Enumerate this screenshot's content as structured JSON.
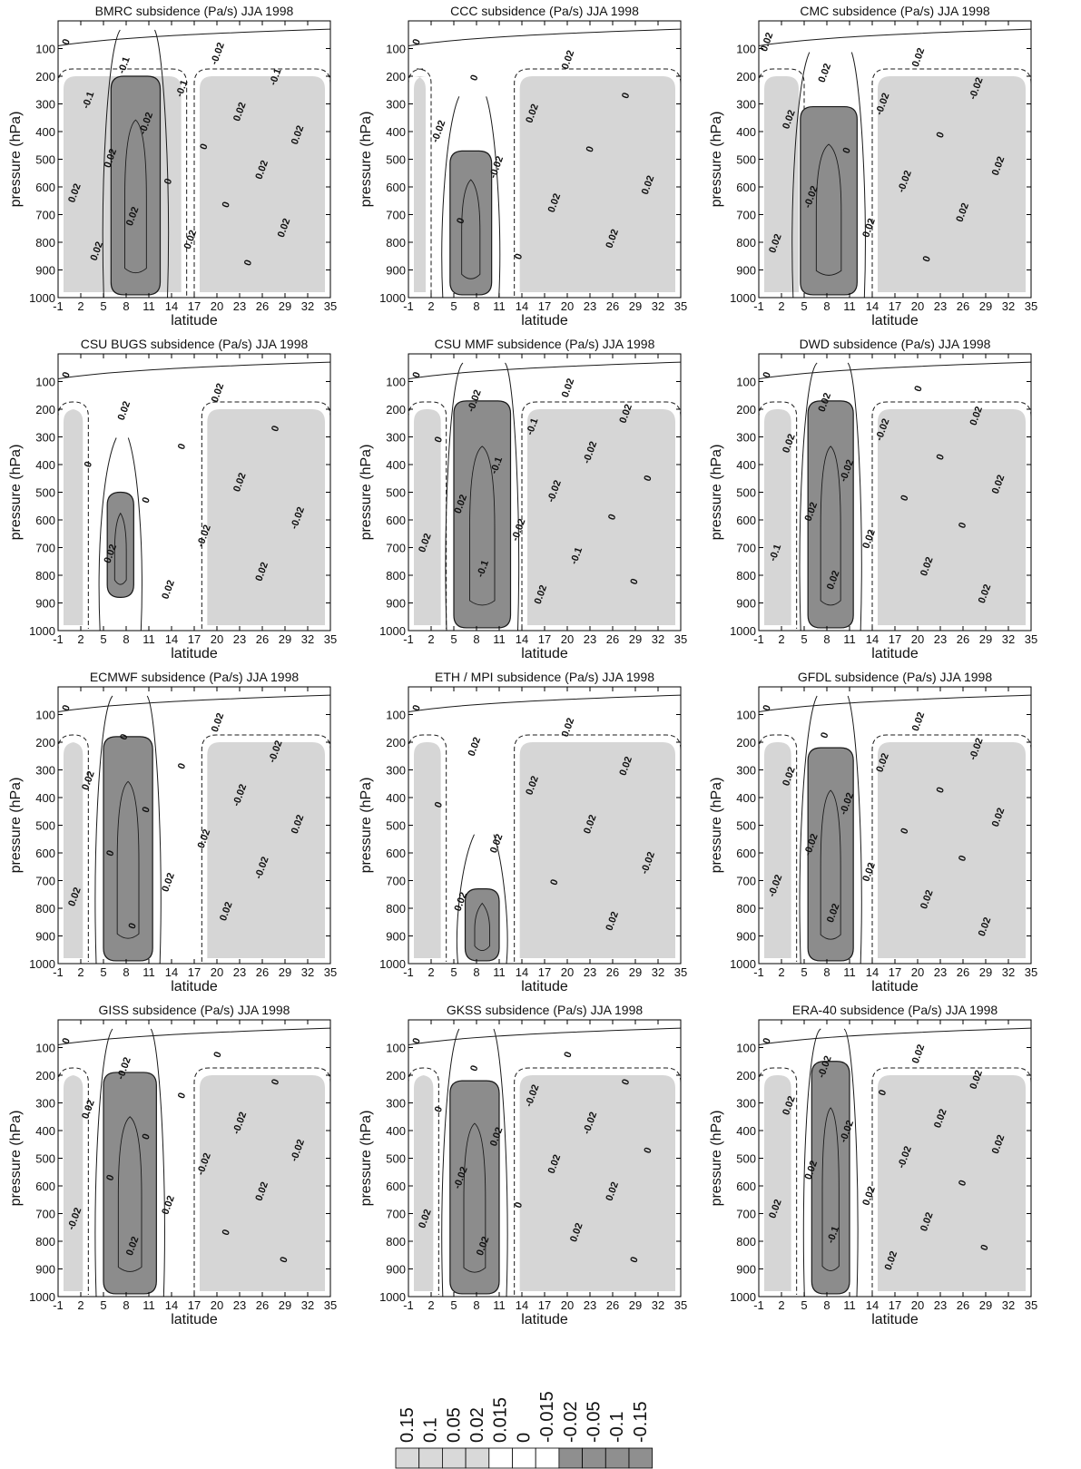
{
  "figure": {
    "colorbar": {
      "labels": [
        "0.15",
        "0.1",
        "0.05",
        "0.02",
        "0.015",
        "0",
        "-0.015",
        "-0.02",
        "-0.05",
        "-0.1",
        "-0.15"
      ],
      "fills": [
        "#d9d9d9",
        "#d9d9d9",
        "#d9d9d9",
        "#d9d9d9",
        "#ffffff",
        "#ffffff",
        "#ffffff",
        "#8f8f8f",
        "#8f8f8f",
        "#8f8f8f",
        "#8f8f8f"
      ]
    }
  },
  "colors": {
    "light": "#d6d6d6",
    "dark": "#8c8c8c",
    "line": "#1a1a1a",
    "frame": "#000000"
  },
  "chart_data": [
    {
      "type": "heatmap",
      "title": "BMRC subsidence (Pa/s) JJA 1998",
      "xlabel": "latitude",
      "ylabel": "pressure (hPa)",
      "xlim": [
        -1,
        35
      ],
      "ylim": [
        1000,
        0
      ],
      "xticks": [
        "-1",
        "2",
        "5",
        "8",
        "11",
        "14",
        "17",
        "20",
        "23",
        "26",
        "29",
        "32",
        "35"
      ],
      "yticks": [
        "100",
        "200",
        "300",
        "400",
        "500",
        "600",
        "700",
        "800",
        "900",
        "1000"
      ],
      "contour_labels": [
        "0",
        "-0.02",
        "-0.1",
        "-0.1",
        "-0.1",
        "-0.1",
        "0.02",
        "-0.02",
        "0.02",
        "0",
        "0.02",
        "0.02",
        "0",
        "0.02",
        "0",
        "0.02",
        "0.02",
        "0.02",
        "0.02",
        "0"
      ],
      "dark": {
        "x0": 6,
        "x1": 12.5,
        "top": 200,
        "bottom": 990
      },
      "light": [
        [
          -1,
          16,
          200
        ],
        [
          17,
          35,
          200
        ]
      ]
    },
    {
      "type": "heatmap",
      "title": "CCC subsidence (Pa/s) JJA 1998",
      "xlabel": "latitude",
      "ylabel": "pressure (hPa)",
      "xlim": [
        -1,
        35
      ],
      "ylim": [
        1000,
        0
      ],
      "xticks": [
        "-1",
        "2",
        "5",
        "8",
        "11",
        "14",
        "17",
        "20",
        "23",
        "26",
        "29",
        "32",
        "35"
      ],
      "yticks": [
        "100",
        "200",
        "300",
        "400",
        "500",
        "600",
        "700",
        "800",
        "900",
        "1000"
      ],
      "contour_labels": [
        "0",
        "0.02",
        "0",
        "0",
        "0.02",
        "-0.02",
        "0",
        "-0.02",
        "0.02",
        "0.02",
        "0",
        "0.02",
        "0"
      ],
      "dark": {
        "x0": 4.5,
        "x1": 10,
        "top": 470,
        "bottom": 990
      },
      "light": [
        [
          -1,
          2,
          200
        ],
        [
          13,
          35,
          200
        ]
      ]
    },
    {
      "type": "heatmap",
      "title": "CMC subsidence (Pa/s) JJA 1998",
      "xlabel": "latitude",
      "ylabel": "pressure (hPa)",
      "xlim": [
        -1,
        35
      ],
      "ylim": [
        1000,
        0
      ],
      "xticks": [
        "-1",
        "2",
        "5",
        "8",
        "11",
        "14",
        "17",
        "20",
        "23",
        "26",
        "29",
        "32",
        "35"
      ],
      "yticks": [
        "100",
        "200",
        "300",
        "400",
        "500",
        "600",
        "700",
        "800",
        "900",
        "1000"
      ],
      "contour_labels": [
        "0.02",
        "0.02",
        "0.02",
        "-0.02",
        "-0.02",
        "0.02",
        "0",
        "0",
        "0.02",
        "-0.02",
        "-0.02",
        "0.02",
        "0.02",
        "0.02",
        "0"
      ],
      "dark": {
        "x0": 4.5,
        "x1": 12,
        "top": 310,
        "bottom": 990
      },
      "light": [
        [
          -1,
          5,
          200
        ],
        [
          14,
          35,
          200
        ]
      ]
    },
    {
      "type": "heatmap",
      "title": "CSU BUGS subsidence (Pa/s) JJA 1998",
      "xlabel": "latitude",
      "ylabel": "pressure (hPa)",
      "xlim": [
        -1,
        35
      ],
      "ylim": [
        1000,
        0
      ],
      "xticks": [
        "-1",
        "2",
        "5",
        "8",
        "11",
        "14",
        "17",
        "20",
        "23",
        "26",
        "29",
        "32",
        "35"
      ],
      "yticks": [
        "100",
        "200",
        "300",
        "400",
        "500",
        "600",
        "700",
        "800",
        "900",
        "1000"
      ],
      "contour_labels": [
        "0",
        "0.02",
        "0.02",
        "0",
        "0",
        "0",
        "0.02",
        "0",
        "-0.02",
        "-0.02",
        "0.02",
        "0.02",
        "0.02"
      ],
      "dark": {
        "x0": 5.5,
        "x1": 9,
        "top": 500,
        "bottom": 880
      },
      "light": [
        [
          -1,
          3,
          200
        ],
        [
          18,
          35,
          200
        ]
      ]
    },
    {
      "type": "heatmap",
      "title": "CSU MMF subsidence (Pa/s) JJA 1998",
      "xlabel": "latitude",
      "ylabel": "pressure (hPa)",
      "xlim": [
        -1,
        35
      ],
      "ylim": [
        1000,
        0
      ],
      "xticks": [
        "-1",
        "2",
        "5",
        "8",
        "11",
        "14",
        "17",
        "20",
        "23",
        "26",
        "29",
        "32",
        "35"
      ],
      "yticks": [
        "100",
        "200",
        "300",
        "400",
        "500",
        "600",
        "700",
        "800",
        "900",
        "1000"
      ],
      "contour_labels": [
        "0",
        "0.02",
        "-0.02",
        "0.02",
        "-0.1",
        "0",
        "-0.02",
        "-0.1",
        "0",
        "-0.02",
        "0.02",
        "0",
        "-0.02",
        "0.02",
        "-0.1",
        "-0.1",
        "0",
        "0.02"
      ],
      "dark": {
        "x0": 5,
        "x1": 12.5,
        "top": 170,
        "bottom": 990
      },
      "light": [
        [
          -1,
          4,
          200
        ],
        [
          14,
          35,
          200
        ]
      ]
    },
    {
      "type": "heatmap",
      "title": "DWD subsidence (Pa/s) JJA 1998",
      "xlabel": "latitude",
      "ylabel": "pressure (hPa)",
      "xlim": [
        -1,
        35
      ],
      "ylim": [
        1000,
        0
      ],
      "xticks": [
        "-1",
        "2",
        "5",
        "8",
        "11",
        "14",
        "17",
        "20",
        "23",
        "26",
        "29",
        "32",
        "35"
      ],
      "yticks": [
        "100",
        "200",
        "300",
        "400",
        "500",
        "600",
        "700",
        "800",
        "900",
        "1000"
      ],
      "contour_labels": [
        "0",
        "0",
        "0.02",
        "0.02",
        "-0.02",
        "0.02",
        "0",
        "-0.02",
        "0.02",
        "0",
        "0.02",
        "0",
        "0.02",
        "-0.1",
        "0.02",
        "0.02",
        "0.02"
      ],
      "dark": {
        "x0": 5.5,
        "x1": 11.5,
        "top": 170,
        "bottom": 990
      },
      "light": [
        [
          -1,
          4,
          200
        ],
        [
          14,
          35,
          200
        ]
      ]
    },
    {
      "type": "heatmap",
      "title": "ECMWF subsidence (Pa/s) JJA 1998",
      "xlabel": "latitude",
      "ylabel": "pressure (hPa)",
      "xlim": [
        -1,
        35
      ],
      "ylim": [
        1000,
        0
      ],
      "xticks": [
        "-1",
        "2",
        "5",
        "8",
        "11",
        "14",
        "17",
        "20",
        "23",
        "26",
        "29",
        "32",
        "35"
      ],
      "yticks": [
        "100",
        "200",
        "300",
        "400",
        "500",
        "600",
        "700",
        "800",
        "900",
        "1000"
      ],
      "contour_labels": [
        "0",
        "0.02",
        "0",
        "-0.02",
        "0",
        "0.02",
        "-0.02",
        "0",
        "0.02",
        "0.02",
        "0",
        "-0.02",
        "0.02",
        "0.02",
        "0.02",
        "0"
      ],
      "dark": {
        "x0": 5,
        "x1": 11.5,
        "top": 180,
        "bottom": 990
      },
      "light": [
        [
          -1,
          3,
          200
        ],
        [
          18,
          35,
          200
        ]
      ]
    },
    {
      "type": "heatmap",
      "title": "ETH / MPI subsidence (Pa/s) JJA 1998",
      "xlabel": "latitude",
      "ylabel": "pressure (hPa)",
      "xlim": [
        -1,
        35
      ],
      "ylim": [
        1000,
        0
      ],
      "xticks": [
        "-1",
        "2",
        "5",
        "8",
        "11",
        "14",
        "17",
        "20",
        "23",
        "26",
        "29",
        "32",
        "35"
      ],
      "yticks": [
        "100",
        "200",
        "300",
        "400",
        "500",
        "600",
        "700",
        "800",
        "900",
        "1000"
      ],
      "contour_labels": [
        "0",
        "0.02",
        "0.02",
        "0.02",
        "0.02",
        "0",
        "0.02",
        "0.02",
        "-0.02",
        "0",
        "0.02",
        "0.02"
      ],
      "dark": {
        "x0": 6.5,
        "x1": 11,
        "top": 730,
        "bottom": 990
      },
      "light": [
        [
          -1,
          4,
          200
        ],
        [
          13,
          35,
          200
        ]
      ]
    },
    {
      "type": "heatmap",
      "title": "GFDL subsidence (Pa/s) JJA 1998",
      "xlabel": "latitude",
      "ylabel": "pressure (hPa)",
      "xlim": [
        -1,
        35
      ],
      "ylim": [
        1000,
        0
      ],
      "xticks": [
        "-1",
        "2",
        "5",
        "8",
        "11",
        "14",
        "17",
        "20",
        "23",
        "26",
        "29",
        "32",
        "35"
      ],
      "yticks": [
        "100",
        "200",
        "300",
        "400",
        "500",
        "600",
        "700",
        "800",
        "900",
        "1000"
      ],
      "contour_labels": [
        "0",
        "0.02",
        "0",
        "-0.02",
        "0.02",
        "0.02",
        "0",
        "-0.02",
        "0.02",
        "0",
        "-0.02",
        "0",
        "0.02",
        "-0.02",
        "0.02",
        "0.02",
        "0.02"
      ],
      "dark": {
        "x0": 5.5,
        "x1": 11.5,
        "top": 220,
        "bottom": 990
      },
      "light": [
        [
          -1,
          4,
          200
        ],
        [
          14,
          35,
          200
        ]
      ]
    },
    {
      "type": "heatmap",
      "title": "GISS subsidence (Pa/s) JJA 1998",
      "xlabel": "latitude",
      "ylabel": "pressure (hPa)",
      "xlim": [
        -1,
        35
      ],
      "ylim": [
        1000,
        0
      ],
      "xticks": [
        "-1",
        "2",
        "5",
        "8",
        "11",
        "14",
        "17",
        "20",
        "23",
        "26",
        "29",
        "32",
        "35"
      ],
      "yticks": [
        "100",
        "200",
        "300",
        "400",
        "500",
        "600",
        "700",
        "800",
        "900",
        "1000"
      ],
      "contour_labels": [
        "0",
        "0",
        "-0.02",
        "0",
        "0",
        "0.02",
        "-0.02",
        "0",
        "-0.02",
        "-0.02",
        "0",
        "0.02",
        "0.02",
        "-0.02",
        "0",
        "0.02",
        "0"
      ],
      "dark": {
        "x0": 5,
        "x1": 12,
        "top": 190,
        "bottom": 990
      },
      "light": [
        [
          -1,
          3,
          200
        ],
        [
          17,
          35,
          200
        ]
      ]
    },
    {
      "type": "heatmap",
      "title": "GKSS subsidence (Pa/s) JJA 1998",
      "xlabel": "latitude",
      "ylabel": "pressure (hPa)",
      "xlim": [
        -1,
        35
      ],
      "ylim": [
        1000,
        0
      ],
      "xticks": [
        "-1",
        "2",
        "5",
        "8",
        "11",
        "14",
        "17",
        "20",
        "23",
        "26",
        "29",
        "32",
        "35"
      ],
      "yticks": [
        "100",
        "200",
        "300",
        "400",
        "500",
        "600",
        "700",
        "800",
        "900",
        "1000"
      ],
      "contour_labels": [
        "0",
        "0",
        "0",
        "0",
        "-0.02",
        "0",
        "-0.02",
        "0.02",
        "0",
        "0.02",
        "-0.02",
        "0.02",
        "0",
        "0.02",
        "0.02",
        "0.02",
        "0"
      ],
      "dark": {
        "x0": 4.5,
        "x1": 11,
        "top": 220,
        "bottom": 990
      },
      "light": [
        [
          -1,
          3,
          200
        ],
        [
          13,
          35,
          200
        ]
      ]
    },
    {
      "type": "heatmap",
      "title": "ERA-40 subsidence (Pa/s) JJA 1998",
      "xlabel": "latitude",
      "ylabel": "pressure (hPa)",
      "xlim": [
        -1,
        35
      ],
      "ylim": [
        1000,
        0
      ],
      "xticks": [
        "-1",
        "2",
        "5",
        "8",
        "11",
        "14",
        "17",
        "20",
        "23",
        "26",
        "29",
        "32",
        "35"
      ],
      "yticks": [
        "100",
        "200",
        "300",
        "400",
        "500",
        "600",
        "700",
        "800",
        "900",
        "1000"
      ],
      "contour_labels": [
        "0",
        "0.02",
        "-0.02",
        "0.02",
        "0",
        "0.02",
        "0.02",
        "-0.02",
        "0.02",
        "-0.02",
        "0.02",
        "0",
        "0.02",
        "0.02",
        "0.02",
        "-0.1",
        "0",
        "0.02"
      ],
      "dark": {
        "x0": 6,
        "x1": 11,
        "top": 150,
        "bottom": 990
      },
      "light": [
        [
          -1,
          4,
          200
        ],
        [
          14,
          35,
          200
        ]
      ]
    }
  ]
}
